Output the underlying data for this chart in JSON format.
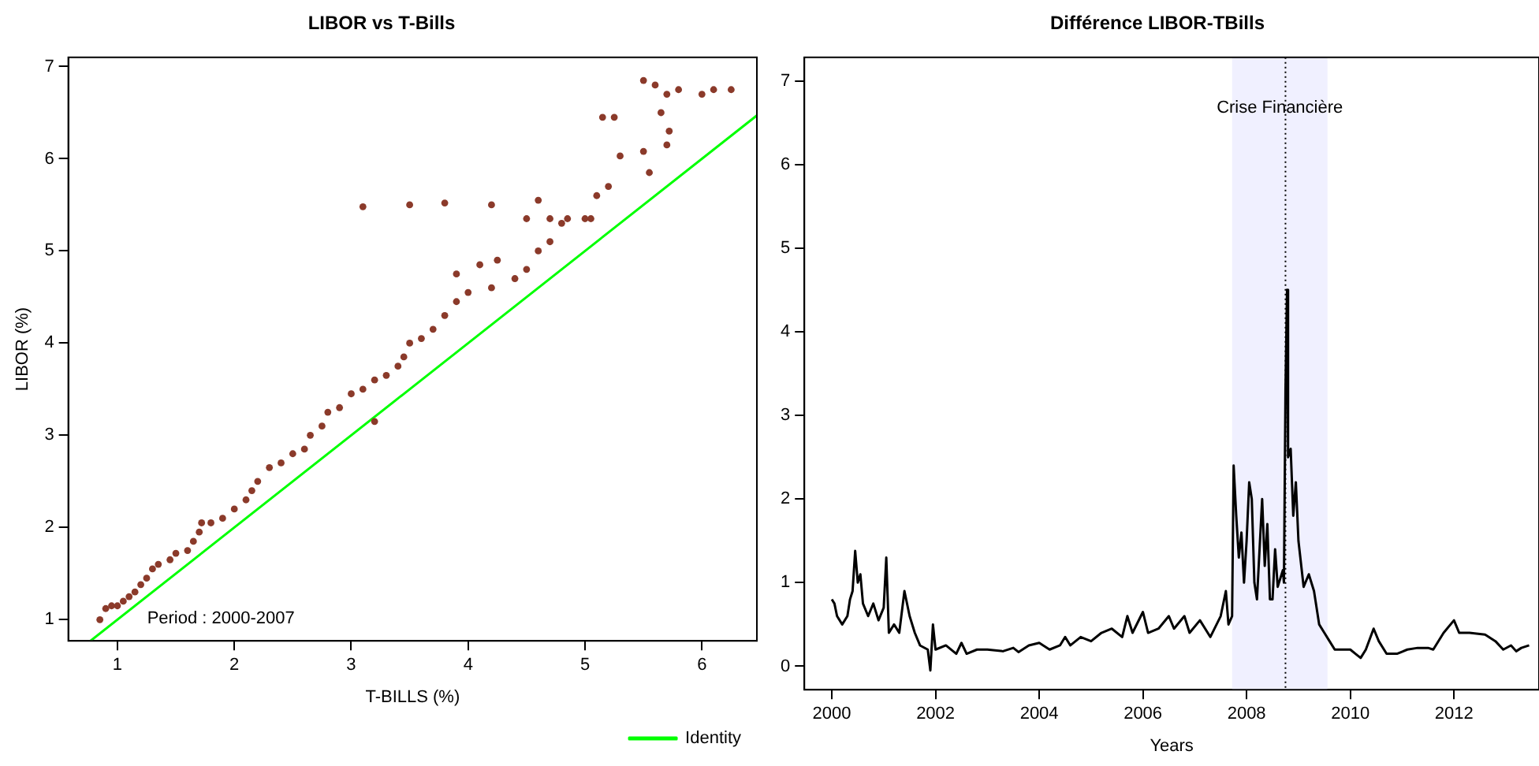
{
  "chart_data": [
    {
      "type": "scatter",
      "title": "LIBOR vs T-Bills",
      "xlabel": "T-BILLS (%)",
      "ylabel": "LIBOR (%)",
      "xlim": [
        0.58,
        6.47
      ],
      "ylim": [
        0.77,
        7.1
      ],
      "xticks": [
        1,
        2,
        3,
        4,
        5,
        6
      ],
      "yticks": [
        1,
        2,
        3,
        4,
        5,
        6,
        7
      ],
      "grid": false,
      "legend": "bottom right",
      "annotations": [
        "Period : 2000-2007"
      ],
      "series": [
        {
          "color": "#8b3a2a",
          "marker": "circle",
          "x": [
            0.85,
            0.9,
            0.95,
            1.0,
            1.05,
            1.1,
            1.15,
            1.2,
            1.25,
            1.3,
            1.35,
            1.45,
            1.5,
            1.6,
            1.65,
            1.7,
            1.72,
            1.8,
            1.9,
            2.0,
            2.1,
            2.15,
            2.2,
            2.3,
            2.4,
            2.5,
            2.6,
            2.65,
            2.75,
            2.8,
            2.9,
            3.0,
            3.1,
            3.2,
            3.3,
            3.4,
            3.45,
            3.5,
            3.6,
            3.7,
            3.8,
            3.9,
            4.0,
            4.2,
            4.4,
            4.5,
            4.6,
            4.7,
            4.8,
            4.85,
            5.0,
            5.05,
            4.7,
            4.5,
            5.1,
            5.2,
            5.3,
            5.5,
            5.7,
            5.72,
            5.65,
            5.7,
            5.8,
            6.0,
            6.1,
            6.25,
            5.6,
            5.5,
            3.1,
            3.5,
            3.8,
            4.2,
            4.6,
            5.15,
            5.25,
            5.55,
            3.2,
            3.9,
            4.1,
            4.25
          ],
          "values": [
            1.0,
            1.12,
            1.15,
            1.15,
            1.2,
            1.25,
            1.3,
            1.38,
            1.45,
            1.55,
            1.6,
            1.65,
            1.72,
            1.75,
            1.85,
            1.95,
            2.05,
            2.05,
            2.1,
            2.2,
            2.3,
            2.4,
            2.5,
            2.65,
            2.7,
            2.8,
            2.85,
            3.0,
            3.1,
            3.25,
            3.3,
            3.45,
            3.5,
            3.6,
            3.65,
            3.75,
            3.85,
            4.0,
            4.05,
            4.15,
            4.3,
            4.45,
            4.55,
            4.6,
            4.7,
            4.8,
            5.0,
            5.1,
            5.3,
            5.35,
            5.35,
            5.35,
            5.35,
            5.35,
            5.6,
            5.7,
            6.03,
            6.08,
            6.15,
            6.3,
            6.5,
            6.7,
            6.75,
            6.7,
            6.75,
            6.75,
            6.8,
            6.85,
            5.48,
            5.5,
            5.52,
            5.5,
            5.55,
            6.45,
            6.45,
            5.85,
            3.15,
            4.75,
            4.85,
            4.9
          ]
        },
        {
          "type": "line",
          "name": "Identity",
          "color": "#00ff00",
          "marker": "none",
          "x": [
            0.77,
            6.47
          ],
          "values": [
            0.77,
            6.47
          ]
        }
      ]
    },
    {
      "type": "line",
      "title": "Différence LIBOR-TBills",
      "xlabel": "Years",
      "xlim": [
        1999.47,
        2013.64
      ],
      "ylim": [
        -0.28,
        7.28
      ],
      "xticks": [
        2000,
        2002,
        2004,
        2006,
        2008,
        2010,
        2012
      ],
      "yticks": [
        0,
        1,
        2,
        3,
        4,
        5,
        6,
        7
      ],
      "grid": false,
      "legend": false,
      "bands": [
        {
          "axis": "x",
          "from": 2007.72,
          "to": 2009.56,
          "label": "Crise Financière",
          "color": "#f0f0ff"
        }
      ],
      "ref_lines": [
        {
          "axis": "x",
          "value": 2008.75,
          "color": "#000000",
          "line_style": "dotted"
        }
      ],
      "series": [
        {
          "color": "#000000",
          "marker": "none",
          "x": [
            2000.0,
            2000.05,
            2000.1,
            2000.2,
            2000.3,
            2000.35,
            2000.4,
            2000.45,
            2000.5,
            2000.55,
            2000.6,
            2000.7,
            2000.8,
            2000.9,
            2001.0,
            2001.05,
            2001.1,
            2001.2,
            2001.3,
            2001.4,
            2001.5,
            2001.6,
            2001.7,
            2001.85,
            2001.9,
            2001.95,
            2002.0,
            2002.2,
            2002.4,
            2002.5,
            2002.6,
            2002.8,
            2003.0,
            2003.3,
            2003.5,
            2003.6,
            2003.8,
            2004.0,
            2004.2,
            2004.4,
            2004.5,
            2004.6,
            2004.8,
            2005.0,
            2005.2,
            2005.4,
            2005.6,
            2005.7,
            2005.8,
            2006.0,
            2006.1,
            2006.3,
            2006.5,
            2006.6,
            2006.8,
            2006.9,
            2007.1,
            2007.3,
            2007.5,
            2007.6,
            2007.65,
            2007.72,
            2007.75,
            2007.8,
            2007.85,
            2007.9,
            2007.95,
            2008.0,
            2008.05,
            2008.1,
            2008.15,
            2008.2,
            2008.3,
            2008.35,
            2008.4,
            2008.45,
            2008.5,
            2008.55,
            2008.6,
            2008.7,
            2008.72,
            2008.75,
            2008.78,
            2008.8,
            2008.85,
            2008.9,
            2008.95,
            2009.0,
            2009.1,
            2009.2,
            2009.3,
            2009.4,
            2009.5,
            2009.6,
            2009.7,
            2009.8,
            2010.0,
            2010.1,
            2010.2,
            2010.3,
            2010.45,
            2010.55,
            2010.7,
            2010.9,
            2011.1,
            2011.3,
            2011.5,
            2011.6,
            2011.8,
            2012.0,
            2012.1,
            2012.3,
            2012.6,
            2012.8,
            2012.95,
            2013.1,
            2013.2,
            2013.3,
            2013.45
          ],
          "values": [
            0.8,
            0.75,
            0.6,
            0.5,
            0.6,
            0.8,
            0.9,
            1.38,
            1.0,
            1.1,
            0.75,
            0.6,
            0.75,
            0.55,
            0.7,
            1.3,
            0.4,
            0.5,
            0.4,
            0.9,
            0.6,
            0.4,
            0.25,
            0.2,
            -0.05,
            0.5,
            0.2,
            0.25,
            0.15,
            0.28,
            0.15,
            0.2,
            0.2,
            0.18,
            0.22,
            0.17,
            0.25,
            0.28,
            0.2,
            0.25,
            0.35,
            0.25,
            0.35,
            0.3,
            0.4,
            0.45,
            0.35,
            0.6,
            0.4,
            0.65,
            0.4,
            0.45,
            0.6,
            0.45,
            0.6,
            0.4,
            0.55,
            0.35,
            0.6,
            0.9,
            0.5,
            0.6,
            2.4,
            1.8,
            1.3,
            1.6,
            1.0,
            1.5,
            2.2,
            2.0,
            1.0,
            0.8,
            2.0,
            1.2,
            1.7,
            0.8,
            0.8,
            1.4,
            0.95,
            1.15,
            1.0,
            3.3,
            4.5,
            2.5,
            2.6,
            1.8,
            2.2,
            1.5,
            0.95,
            1.1,
            0.9,
            0.5,
            0.4,
            0.3,
            0.2,
            0.2,
            0.2,
            0.15,
            0.1,
            0.2,
            0.45,
            0.3,
            0.15,
            0.15,
            0.2,
            0.22,
            0.22,
            0.2,
            0.4,
            0.55,
            0.4,
            0.4,
            0.38,
            0.3,
            0.2,
            0.25,
            0.18,
            0.22,
            0.25
          ]
        }
      ]
    }
  ]
}
